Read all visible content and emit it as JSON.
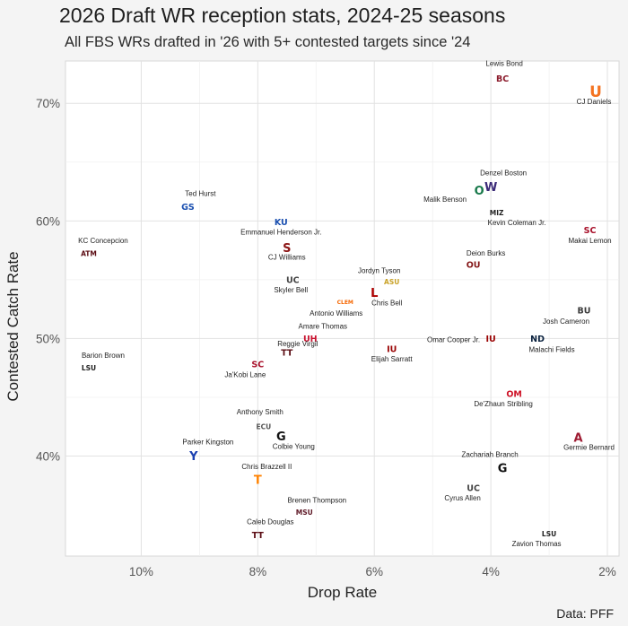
{
  "header": {
    "title": "2026 Draft WR reception stats, 2024-25 seasons",
    "subtitle": "All FBS WRs drafted in '26 with 5+ contested targets since '24"
  },
  "caption": "Data: PFF",
  "chart_data": {
    "type": "scatter",
    "title": "2026 Draft WR reception stats, 2024-25 seasons",
    "subtitle": "All FBS WRs drafted in '26 with 5+ contested targets since '24",
    "xlabel": "Drop Rate",
    "ylabel": "Contested Catch Rate",
    "x_reversed": true,
    "xlim": [
      11.3,
      1.8
    ],
    "ylim": [
      31.5,
      73.6
    ],
    "x_ticks": [
      10,
      8,
      6,
      4,
      2
    ],
    "x_tick_labels": [
      "10%",
      "8%",
      "6%",
      "4%",
      "2%"
    ],
    "y_ticks": [
      40,
      50,
      60,
      70
    ],
    "y_tick_labels": [
      "40%",
      "50%",
      "60%",
      "70%"
    ],
    "grid": true,
    "points": [
      {
        "name": "Lewis Bond",
        "x": 3.8,
        "y": 72.1,
        "logo": "BC",
        "color": "#8b1a2b"
      },
      {
        "name": "CJ Daniels",
        "x": 2.2,
        "y": 71.0,
        "logo": "U",
        "color": "#f47321"
      },
      {
        "name": "Denzel Boston",
        "x": 4.0,
        "y": 62.9,
        "logo": "W",
        "color": "#3b2a78"
      },
      {
        "name": "Malik Benson",
        "x": 4.2,
        "y": 62.6,
        "logo": "O",
        "color": "#1a7a4c"
      },
      {
        "name": "Ted Hurst",
        "x": 9.2,
        "y": 61.2,
        "logo": "GS",
        "color": "#1a4fb0"
      },
      {
        "name": "Kevin Coleman Jr.",
        "x": 3.9,
        "y": 60.7,
        "logo": "MIZ",
        "color": "#222222"
      },
      {
        "name": "Emmanuel Henderson Jr.",
        "x": 7.6,
        "y": 59.9,
        "logo": "KU",
        "color": "#1a4fb0"
      },
      {
        "name": "Makai Lemon",
        "x": 2.3,
        "y": 59.2,
        "logo": "SC",
        "color": "#a8102a"
      },
      {
        "name": "KC Concepcion",
        "x": 10.9,
        "y": 57.2,
        "logo": "ATM",
        "color": "#5a0b12"
      },
      {
        "name": "CJ Williams",
        "x": 7.5,
        "y": 57.7,
        "logo": "S",
        "color": "#8c1515"
      },
      {
        "name": "Deion Burks",
        "x": 4.3,
        "y": 56.3,
        "logo": "OU",
        "color": "#841617"
      },
      {
        "name": "Skyler Bell",
        "x": 7.4,
        "y": 55.0,
        "logo": "UC",
        "color": "#444444"
      },
      {
        "name": "Jordyn Tyson",
        "x": 5.7,
        "y": 54.8,
        "logo": "ASU",
        "color": "#c9a227"
      },
      {
        "name": "Chris Bell",
        "x": 6.0,
        "y": 53.9,
        "logo": "L",
        "color": "#ad0000"
      },
      {
        "name": "Antonio Williams",
        "x": 6.5,
        "y": 53.1,
        "logo": "CLEM",
        "color": "#f56600"
      },
      {
        "name": "Josh Cameron",
        "x": 2.4,
        "y": 52.4,
        "logo": "BU",
        "color": "#3a3a3a"
      },
      {
        "name": "Amare Thomas",
        "x": 7.1,
        "y": 50.0,
        "logo": "UH",
        "color": "#c8102e"
      },
      {
        "name": "Omar Cooper Jr.",
        "x": 4.0,
        "y": 50.0,
        "logo": "IU",
        "color": "#990000"
      },
      {
        "name": "Malachi Fields",
        "x": 3.2,
        "y": 50.0,
        "logo": "ND",
        "color": "#0c2340"
      },
      {
        "name": "Elijah Sarratt",
        "x": 5.7,
        "y": 49.1,
        "logo": "IU",
        "color": "#990000"
      },
      {
        "name": "Reggie Virgil",
        "x": 7.5,
        "y": 48.8,
        "logo": "TT",
        "color": "#5a0b12"
      },
      {
        "name": "Barion Brown",
        "x": 10.9,
        "y": 47.5,
        "logo": "LSU",
        "color": "#222222"
      },
      {
        "name": "Ja'Kobi Lane",
        "x": 8.0,
        "y": 47.8,
        "logo": "SC",
        "color": "#a8102a"
      },
      {
        "name": "De'Zhaun Stribling",
        "x": 3.6,
        "y": 45.3,
        "logo": "OM",
        "color": "#ce1126"
      },
      {
        "name": "Anthony Smith",
        "x": 7.9,
        "y": 42.5,
        "logo": "ECU",
        "color": "#555555"
      },
      {
        "name": "Colbie Young",
        "x": 7.6,
        "y": 41.7,
        "logo": "G",
        "color": "#111111"
      },
      {
        "name": "Germie Bernard",
        "x": 2.5,
        "y": 41.6,
        "logo": "A",
        "color": "#9e1b32"
      },
      {
        "name": "Parker Kingston",
        "x": 9.1,
        "y": 40.0,
        "logo": "Y",
        "color": "#1a3fb0"
      },
      {
        "name": "Zachariah Branch",
        "x": 3.8,
        "y": 39.0,
        "logo": "G",
        "color": "#111111"
      },
      {
        "name": "Chris Brazzell II",
        "x": 8.0,
        "y": 38.0,
        "logo": "T",
        "color": "#ff8200"
      },
      {
        "name": "Cyrus Allen",
        "x": 4.3,
        "y": 37.3,
        "logo": "UC",
        "color": "#444444"
      },
      {
        "name": "Brenen Thompson",
        "x": 7.2,
        "y": 35.2,
        "logo": "MSU",
        "color": "#5d1725"
      },
      {
        "name": "Caleb Douglas",
        "x": 8.0,
        "y": 33.3,
        "logo": "TT",
        "color": "#5a0b12"
      },
      {
        "name": "Zavion Thomas",
        "x": 3.0,
        "y": 33.4,
        "logo": "LSU",
        "color": "#222222"
      }
    ]
  }
}
